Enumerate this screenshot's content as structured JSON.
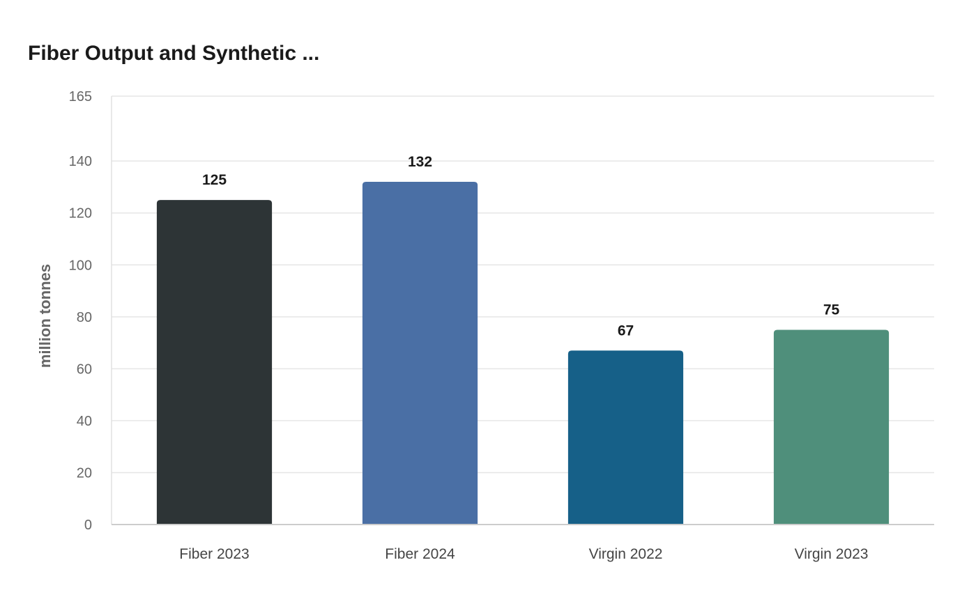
{
  "chart_data": {
    "type": "bar",
    "title": "Fiber Output and Synthetic ...",
    "xlabel": "",
    "ylabel": "million tonnes",
    "categories": [
      "Fiber 2023",
      "Fiber 2024",
      "Virgin 2022",
      "Virgin 2023"
    ],
    "values": [
      125,
      132,
      67,
      75
    ],
    "colors": [
      "#2d3436",
      "#4a6fa5",
      "#166088",
      "#4f8f7b"
    ],
    "ylim": [
      0,
      165
    ],
    "yticks": [
      0,
      20,
      40,
      60,
      80,
      100,
      120,
      140,
      165
    ],
    "grid": true,
    "legend": "none"
  }
}
